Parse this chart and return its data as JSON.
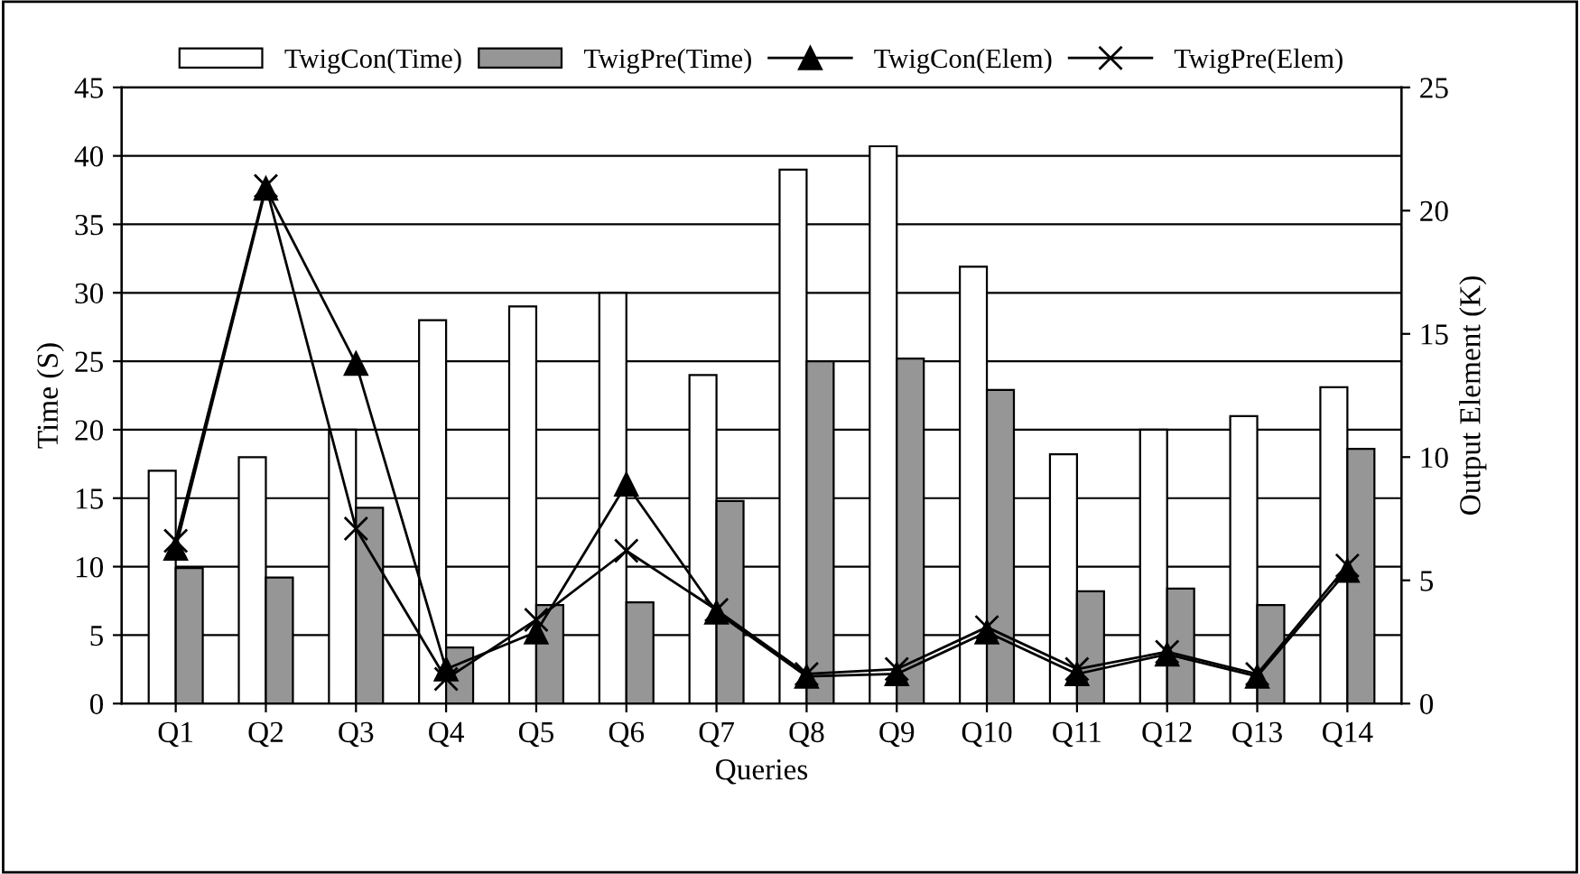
{
  "chart_data": {
    "type": "bar",
    "xlabel": "Queries",
    "ylabel": "Time (S)",
    "y2label": "Output Element (K)",
    "categories": [
      "Q1",
      "Q2",
      "Q3",
      "Q4",
      "Q5",
      "Q6",
      "Q7",
      "Q8",
      "Q9",
      "Q10",
      "Q11",
      "Q12",
      "Q13",
      "Q14"
    ],
    "series": [
      {
        "name": "TwigCon(Time)",
        "color": "#ffffff",
        "values": [
          17,
          18,
          20,
          28,
          29,
          30,
          24,
          39,
          40.7,
          31.9,
          18.2,
          20,
          21,
          23.1
        ]
      },
      {
        "name": "TwigPre(Time)",
        "color": "#969696",
        "values": [
          9.9,
          9.2,
          14.3,
          4.1,
          7.2,
          7.4,
          14.8,
          25,
          25.2,
          22.9,
          8.2,
          8.4,
          7.2,
          18.6
        ]
      },
      {
        "name": "TwigCon(Elem)",
        "type": "line",
        "axis": "y2",
        "marker": "triangle",
        "color": "#000000",
        "values": [
          6.3,
          20.9,
          13.8,
          1.4,
          2.9,
          8.9,
          3.7,
          1.1,
          1.2,
          2.9,
          1.2,
          2.0,
          1.1,
          5.4
        ]
      },
      {
        "name": "TwigPre(Elem)",
        "type": "line",
        "axis": "y2",
        "marker": "cross",
        "color": "#000000",
        "values": [
          6.6,
          21.0,
          7.1,
          1.0,
          3.4,
          6.2,
          3.8,
          1.2,
          1.4,
          3.1,
          1.4,
          2.1,
          1.2,
          5.6
        ]
      }
    ],
    "ylim": [
      0,
      45
    ],
    "yticks": [
      0,
      5,
      10,
      15,
      20,
      25,
      30,
      35,
      40,
      45
    ],
    "y2lim": [
      0,
      25
    ],
    "y2ticks": [
      0,
      5,
      10,
      15,
      20,
      25
    ],
    "grid": "y",
    "legend": "top",
    "line_style": "solid"
  }
}
